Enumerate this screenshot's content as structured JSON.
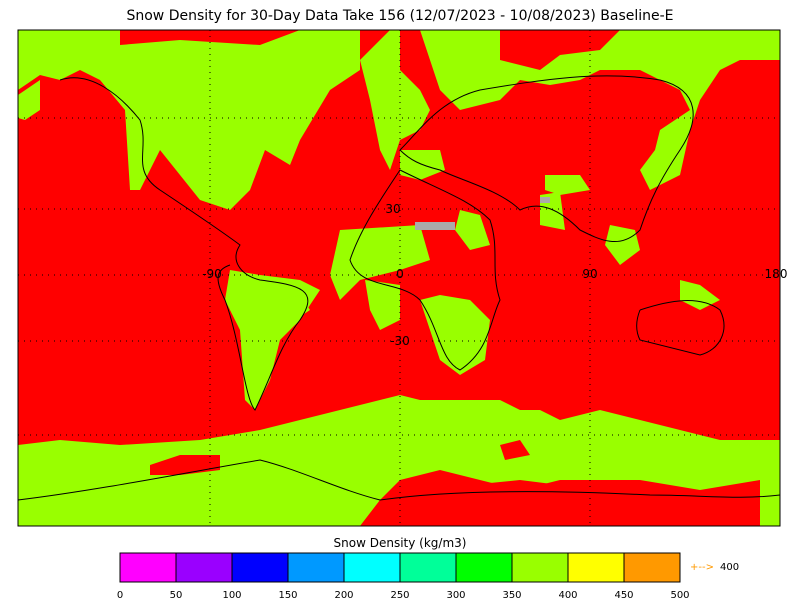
{
  "title": "Snow Density for 30-Day Data Take 156 (12/07/2023 - 10/08/2023) Baseline-E",
  "map": {
    "grid_labels": [
      "30",
      "-90",
      "0",
      "90",
      "180",
      "-30"
    ]
  },
  "colorbar": {
    "label": "Snow Density (kg/m3)",
    "lim": [
      0,
      500
    ],
    "ticks": [
      0,
      50,
      100,
      150,
      200,
      250,
      300,
      350,
      400,
      450,
      500
    ],
    "colors": [
      "#ff00ff",
      "#9a00ff",
      "#0000ff",
      "#0099ff",
      "#00ffff",
      "#00ff99",
      "#00ff00",
      "#99ff00",
      "#ffff00",
      "#ff9900"
    ],
    "arrow": "+-->",
    "overflow_value": 400,
    "arrow_color": "#ff9900"
  }
}
